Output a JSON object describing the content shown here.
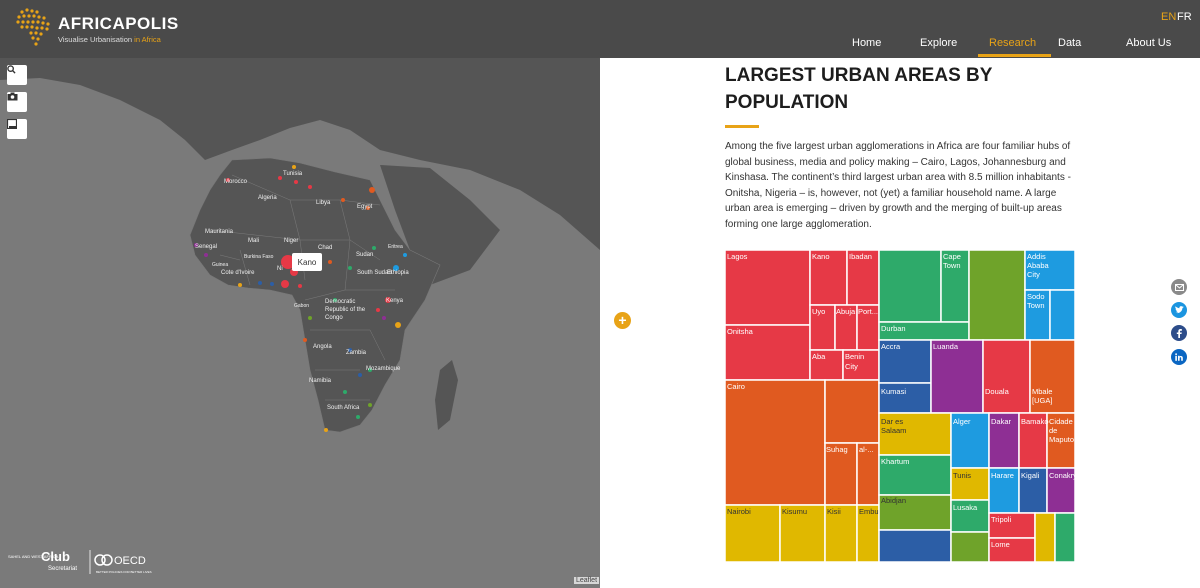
{
  "header": {
    "brand": "AFRICAPOLIS",
    "tagline_main": "Visualise Urbanisation",
    "tagline_accent": "in Africa",
    "lang_en": "EN",
    "lang_fr": "FR",
    "nav": [
      "Home",
      "Explore",
      "Research",
      "Data",
      "About Us"
    ],
    "active_nav": "Research",
    "accent_color": "#e8a317"
  },
  "map": {
    "tooltip": "Kano",
    "attribution": "Leaflet",
    "countries": [
      "Morocco",
      "Tunisia",
      "Algeria",
      "Libya",
      "Egypt",
      "Mauritania",
      "Mali",
      "Niger",
      "Chad",
      "Sudan",
      "Eritrea",
      "Senegal",
      "Burkina Faso",
      "Guinea",
      "Cote d'Ivoire",
      "Ni",
      "South Sudan",
      "Ethiopia",
      "Gabon",
      "Democratic Republic of the Congo",
      "Kenya",
      "Angola",
      "Zambia",
      "Mozambique",
      "Namibia",
      "South Africa"
    ],
    "logos": {
      "club_left": "SAHEL AND WEST AFRICA",
      "club": "Club",
      "club_sub": "Secretariat",
      "oecd": "OECD",
      "oecd_sub": "BETTER POLICIES FOR BETTER LIVES"
    }
  },
  "article": {
    "title_line1": "LARGEST URBAN AREAS BY",
    "title_line2": "POPULATION",
    "paragraph": "Among the five largest urban agglomerations in Africa are four familiar hubs of global business, media and policy making – Cairo, Lagos, Johannesburg and Kinshasa. The continent’s third largest urban area with 8.5 million inhabitants - Onitsha, Nigeria – is, however, not (yet) a familiar household name. A large urban area is emerging – driven by growth and the merging of built-up areas forming one large agglomeration."
  },
  "treemap_labels": {
    "lagos": "Lagos",
    "kano": "Kano",
    "ibadan": "Ibadan",
    "onitsha": "Onitsha",
    "uyo": "Uyo",
    "abuja": "Abuja",
    "port": "Port...",
    "aba": "Aba",
    "benin1": "Benin",
    "benin2": "City",
    "cairo": "Cairo",
    "suhag": "Suhag",
    "al": "al-...",
    "nairobi": "Nairobi",
    "kisumu": "Kisumu",
    "kisii": "Kisii",
    "embu": "Embu",
    "cape1": "Cape",
    "cape2": "Town",
    "durban": "Durban",
    "addis1": "Addis",
    "addis2": "Ababa",
    "addis3": "City",
    "sodo1": "Sodo",
    "sodo2": "Town",
    "accra": "Accra",
    "kumasi": "Kumasi",
    "luanda": "Luanda",
    "douala": "Douala",
    "mbale1": "Mbale",
    "mbale2": "[UGA]",
    "dar1": "Dar es",
    "dar2": "Salaam",
    "alger": "Alger",
    "dakar": "Dakar",
    "bamako": "Bamako",
    "cidade1": "Cidade",
    "cidade2": "de",
    "cidade3": "Maputo",
    "khartum": "Khartum",
    "tunis": "Tunis",
    "harare": "Harare",
    "kigali": "Kigali",
    "conakry": "Conakry",
    "abidjan": "Abidjan",
    "lusaka": "Lusaka",
    "tripoli": "Tripoli",
    "lome": "Lome"
  },
  "share": [
    "email-icon",
    "twitter-icon",
    "facebook-icon",
    "linkedin-icon"
  ]
}
